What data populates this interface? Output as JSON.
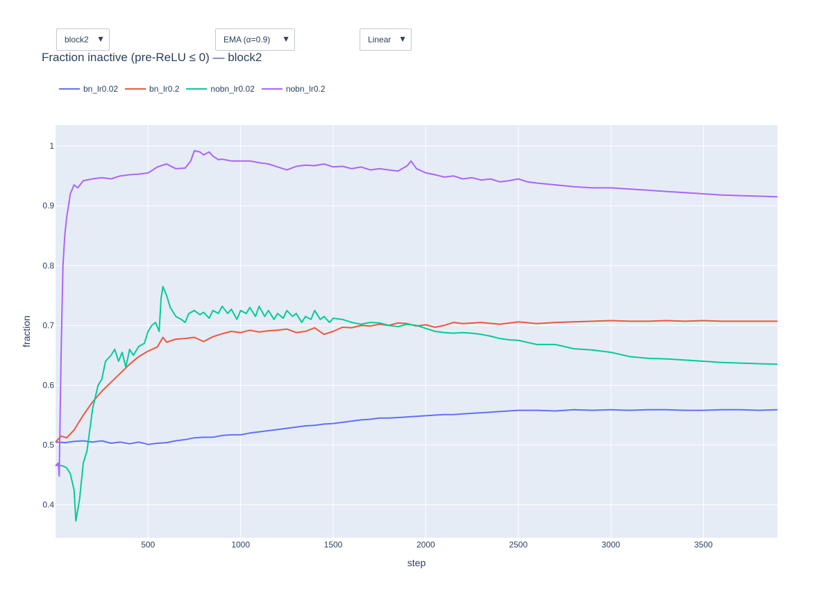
{
  "controls": {
    "layer": {
      "selected": "block2"
    },
    "smoothing": {
      "selected": "EMA (α=0.9)"
    },
    "scale": {
      "selected": "Linear"
    }
  },
  "icons": {
    "dropdown_arrow": "▼"
  },
  "chart_data": {
    "type": "line",
    "title": "Fraction inactive (pre-ReLU ≤ 0) — block2",
    "xlabel": "step",
    "ylabel": "fraction",
    "xlim": [
      0,
      3900
    ],
    "ylim": [
      0.345,
      1.035
    ],
    "x_ticks": [
      500,
      1000,
      1500,
      2000,
      2500,
      3000,
      3500
    ],
    "y_ticks": [
      0.4,
      0.5,
      0.6,
      0.7,
      0.8,
      0.9,
      1
    ],
    "y_tick_labels": [
      "0.4",
      "0.5",
      "0.6",
      "0.7",
      "0.8",
      "0.9",
      "1"
    ],
    "grid": true,
    "legend_position": "top-left",
    "background": "#e5ecf6",
    "series": [
      {
        "name": "bn_lr0.02",
        "color": "#636efa",
        "x": [
          0,
          50,
          100,
          150,
          200,
          250,
          300,
          350,
          400,
          450,
          500,
          550,
          600,
          650,
          700,
          750,
          800,
          850,
          900,
          950,
          1000,
          1050,
          1100,
          1150,
          1200,
          1250,
          1300,
          1350,
          1400,
          1450,
          1500,
          1550,
          1600,
          1650,
          1700,
          1750,
          1800,
          1850,
          1900,
          1950,
          2000,
          2050,
          2100,
          2150,
          2200,
          2250,
          2300,
          2350,
          2400,
          2450,
          2500,
          2600,
          2700,
          2800,
          2900,
          3000,
          3100,
          3200,
          3300,
          3400,
          3500,
          3600,
          3700,
          3800,
          3900
        ],
        "y": [
          0.505,
          0.504,
          0.506,
          0.507,
          0.505,
          0.507,
          0.503,
          0.505,
          0.502,
          0.505,
          0.501,
          0.503,
          0.504,
          0.507,
          0.509,
          0.512,
          0.513,
          0.513,
          0.516,
          0.517,
          0.517,
          0.52,
          0.522,
          0.524,
          0.526,
          0.528,
          0.53,
          0.532,
          0.533,
          0.535,
          0.536,
          0.538,
          0.54,
          0.542,
          0.543,
          0.545,
          0.545,
          0.546,
          0.547,
          0.548,
          0.549,
          0.55,
          0.551,
          0.551,
          0.552,
          0.553,
          0.554,
          0.555,
          0.556,
          0.557,
          0.558,
          0.558,
          0.557,
          0.559,
          0.558,
          0.559,
          0.558,
          0.559,
          0.559,
          0.558,
          0.558,
          0.559,
          0.559,
          0.558,
          0.559
        ]
      },
      {
        "name": "bn_lr0.2",
        "color": "#ef553b",
        "x": [
          0,
          30,
          60,
          100,
          150,
          200,
          250,
          300,
          350,
          400,
          450,
          500,
          550,
          580,
          600,
          650,
          700,
          750,
          800,
          850,
          900,
          950,
          1000,
          1050,
          1100,
          1150,
          1200,
          1250,
          1300,
          1350,
          1400,
          1450,
          1500,
          1550,
          1600,
          1650,
          1700,
          1750,
          1800,
          1850,
          1900,
          1950,
          2000,
          2050,
          2100,
          2150,
          2200,
          2300,
          2400,
          2500,
          2600,
          2700,
          2800,
          2900,
          3000,
          3100,
          3200,
          3300,
          3400,
          3500,
          3600,
          3700,
          3800,
          3900
        ],
        "y": [
          0.505,
          0.515,
          0.512,
          0.525,
          0.55,
          0.572,
          0.59,
          0.605,
          0.62,
          0.635,
          0.648,
          0.657,
          0.664,
          0.68,
          0.672,
          0.677,
          0.678,
          0.68,
          0.673,
          0.681,
          0.686,
          0.69,
          0.688,
          0.692,
          0.689,
          0.691,
          0.692,
          0.694,
          0.688,
          0.69,
          0.696,
          0.685,
          0.69,
          0.697,
          0.696,
          0.7,
          0.699,
          0.702,
          0.7,
          0.704,
          0.703,
          0.699,
          0.701,
          0.697,
          0.7,
          0.705,
          0.703,
          0.705,
          0.702,
          0.706,
          0.703,
          0.705,
          0.706,
          0.707,
          0.708,
          0.707,
          0.707,
          0.708,
          0.707,
          0.708,
          0.707,
          0.707,
          0.707,
          0.707
        ]
      },
      {
        "name": "nobn_lr0.02",
        "color": "#00cc96",
        "x": [
          0,
          20,
          40,
          60,
          80,
          100,
          110,
          130,
          150,
          170,
          200,
          230,
          250,
          270,
          300,
          320,
          340,
          360,
          380,
          400,
          420,
          450,
          480,
          500,
          520,
          540,
          560,
          570,
          580,
          600,
          620,
          650,
          680,
          700,
          720,
          750,
          780,
          800,
          830,
          850,
          880,
          900,
          930,
          950,
          980,
          1000,
          1030,
          1050,
          1080,
          1100,
          1130,
          1150,
          1180,
          1200,
          1230,
          1250,
          1280,
          1300,
          1330,
          1350,
          1380,
          1400,
          1430,
          1450,
          1480,
          1500,
          1550,
          1600,
          1650,
          1700,
          1750,
          1800,
          1850,
          1900,
          1950,
          2000,
          2050,
          2100,
          2150,
          2200,
          2250,
          2300,
          2350,
          2400,
          2450,
          2500,
          2600,
          2700,
          2800,
          2900,
          3000,
          3100,
          3200,
          3300,
          3400,
          3500,
          3600,
          3700,
          3800,
          3900
        ],
        "y": [
          0.466,
          0.466,
          0.465,
          0.462,
          0.452,
          0.425,
          0.373,
          0.41,
          0.47,
          0.49,
          0.56,
          0.6,
          0.61,
          0.64,
          0.65,
          0.66,
          0.64,
          0.655,
          0.63,
          0.66,
          0.65,
          0.665,
          0.67,
          0.69,
          0.7,
          0.705,
          0.69,
          0.745,
          0.765,
          0.75,
          0.73,
          0.715,
          0.71,
          0.705,
          0.72,
          0.725,
          0.718,
          0.722,
          0.712,
          0.725,
          0.72,
          0.732,
          0.72,
          0.727,
          0.71,
          0.725,
          0.72,
          0.73,
          0.715,
          0.732,
          0.715,
          0.725,
          0.71,
          0.72,
          0.712,
          0.725,
          0.715,
          0.72,
          0.705,
          0.715,
          0.71,
          0.725,
          0.71,
          0.715,
          0.705,
          0.712,
          0.71,
          0.705,
          0.702,
          0.705,
          0.704,
          0.7,
          0.698,
          0.702,
          0.7,
          0.695,
          0.69,
          0.688,
          0.687,
          0.688,
          0.687,
          0.685,
          0.682,
          0.678,
          0.676,
          0.675,
          0.668,
          0.668,
          0.661,
          0.659,
          0.655,
          0.648,
          0.645,
          0.644,
          0.642,
          0.64,
          0.638,
          0.637,
          0.636,
          0.635
        ]
      },
      {
        "name": "nobn_lr0.2",
        "color": "#ab63fa",
        "x": [
          0,
          15,
          20,
          30,
          40,
          50,
          60,
          70,
          80,
          100,
          120,
          150,
          200,
          250,
          300,
          350,
          400,
          450,
          500,
          550,
          600,
          650,
          700,
          730,
          750,
          780,
          800,
          830,
          850,
          880,
          900,
          950,
          1000,
          1050,
          1100,
          1150,
          1200,
          1250,
          1300,
          1350,
          1400,
          1450,
          1500,
          1550,
          1600,
          1650,
          1700,
          1750,
          1800,
          1850,
          1900,
          1920,
          1950,
          2000,
          2050,
          2100,
          2150,
          2200,
          2250,
          2300,
          2350,
          2400,
          2450,
          2500,
          2550,
          2600,
          2700,
          2800,
          2900,
          3000,
          3100,
          3200,
          3300,
          3400,
          3500,
          3600,
          3700,
          3800,
          3900
        ],
        "y": [
          0.465,
          0.47,
          0.448,
          0.65,
          0.8,
          0.85,
          0.88,
          0.9,
          0.92,
          0.935,
          0.93,
          0.942,
          0.945,
          0.947,
          0.945,
          0.95,
          0.952,
          0.953,
          0.955,
          0.965,
          0.97,
          0.962,
          0.963,
          0.975,
          0.992,
          0.99,
          0.985,
          0.99,
          0.983,
          0.977,
          0.978,
          0.975,
          0.975,
          0.975,
          0.972,
          0.97,
          0.965,
          0.96,
          0.966,
          0.968,
          0.967,
          0.97,
          0.965,
          0.966,
          0.962,
          0.965,
          0.96,
          0.962,
          0.96,
          0.958,
          0.967,
          0.975,
          0.962,
          0.955,
          0.952,
          0.948,
          0.95,
          0.945,
          0.947,
          0.943,
          0.945,
          0.94,
          0.942,
          0.945,
          0.94,
          0.938,
          0.935,
          0.932,
          0.93,
          0.93,
          0.928,
          0.926,
          0.924,
          0.922,
          0.92,
          0.918,
          0.917,
          0.916,
          0.915
        ]
      }
    ]
  }
}
